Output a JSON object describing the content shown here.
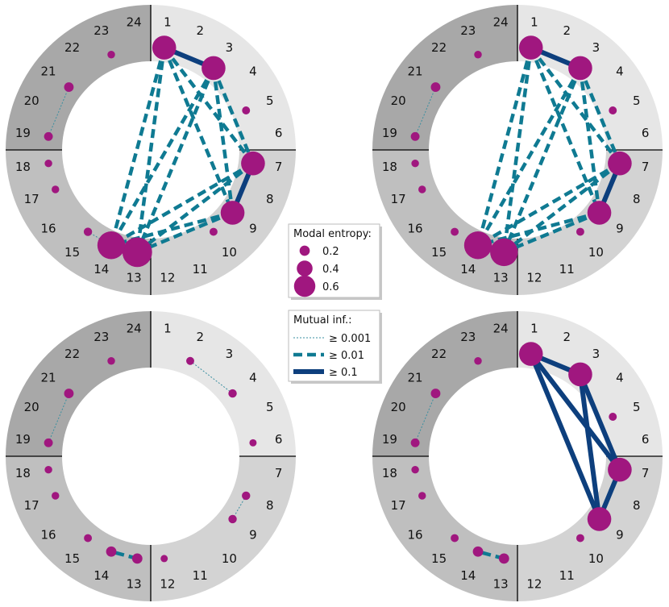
{
  "colors": {
    "ring_q1": "#e6e6e6",
    "ring_q2": "#d3d3d3",
    "ring_q3": "#bfbfbf",
    "ring_q4": "#a8a8a8",
    "node": "#a0177f",
    "edge_weak": "#3a8fa0",
    "edge_mid": "#0f7a92",
    "edge_strong": "#0d3f7d",
    "axis": "#000000"
  },
  "positions": [
    "1",
    "2",
    "3",
    "4",
    "5",
    "6",
    "7",
    "8",
    "9",
    "10",
    "11",
    "12",
    "13",
    "14",
    "15",
    "16",
    "17",
    "18",
    "19",
    "20",
    "21",
    "22",
    "23",
    "24"
  ],
  "legend_entropy": {
    "title": "Modal entropy:",
    "items": [
      {
        "label": "0.2",
        "value": 0.2
      },
      {
        "label": "0.4",
        "value": 0.4
      },
      {
        "label": "0.6",
        "value": 0.6
      }
    ]
  },
  "legend_mi": {
    "title": "Mutual inf.:",
    "items": [
      {
        "label": "≥ 0.001",
        "style": "weak"
      },
      {
        "label": "≥ 0.01",
        "style": "mid"
      },
      {
        "label": "≥ 0.1",
        "style": "strong"
      }
    ]
  },
  "panels": [
    {
      "id": "top-left",
      "nodes": [
        {
          "pos": 1,
          "entropy": 0.45
        },
        {
          "pos": 3,
          "entropy": 0.45
        },
        {
          "pos": 7,
          "entropy": 0.45
        },
        {
          "pos": 9,
          "entropy": 0.45
        },
        {
          "pos": 13,
          "entropy": 0.6
        },
        {
          "pos": 14,
          "entropy": 0.55
        },
        {
          "pos": 5,
          "entropy": 0.04
        },
        {
          "pos": 10,
          "entropy": 0.04
        },
        {
          "pos": 15,
          "entropy": 0.05
        },
        {
          "pos": 17,
          "entropy": 0.03
        },
        {
          "pos": 18,
          "entropy": 0.03
        },
        {
          "pos": 19,
          "entropy": 0.06
        },
        {
          "pos": 21,
          "entropy": 0.08
        },
        {
          "pos": 23,
          "entropy": 0.03
        }
      ],
      "edges": [
        {
          "a": 1,
          "b": 3,
          "mi": "strong"
        },
        {
          "a": 7,
          "b": 9,
          "mi": "strong"
        },
        {
          "a": 13,
          "b": 14,
          "mi": "strong"
        },
        {
          "a": 1,
          "b": 7,
          "mi": "mid"
        },
        {
          "a": 1,
          "b": 9,
          "mi": "mid"
        },
        {
          "a": 1,
          "b": 13,
          "mi": "mid"
        },
        {
          "a": 1,
          "b": 14,
          "mi": "mid"
        },
        {
          "a": 3,
          "b": 7,
          "mi": "mid"
        },
        {
          "a": 3,
          "b": 9,
          "mi": "mid"
        },
        {
          "a": 3,
          "b": 13,
          "mi": "mid"
        },
        {
          "a": 3,
          "b": 14,
          "mi": "mid"
        },
        {
          "a": 7,
          "b": 13,
          "mi": "mid"
        },
        {
          "a": 7,
          "b": 14,
          "mi": "mid"
        },
        {
          "a": 9,
          "b": 13,
          "mi": "mid"
        },
        {
          "a": 9,
          "b": 14,
          "mi": "mid"
        },
        {
          "a": 19,
          "b": 21,
          "mi": "weak"
        },
        {
          "a": 14,
          "b": 15,
          "mi": "weak"
        }
      ]
    },
    {
      "id": "top-right",
      "nodes": [
        {
          "pos": 1,
          "entropy": 0.45
        },
        {
          "pos": 3,
          "entropy": 0.45
        },
        {
          "pos": 7,
          "entropy": 0.45
        },
        {
          "pos": 9,
          "entropy": 0.45
        },
        {
          "pos": 13,
          "entropy": 0.55
        },
        {
          "pos": 14,
          "entropy": 0.55
        },
        {
          "pos": 5,
          "entropy": 0.04
        },
        {
          "pos": 10,
          "entropy": 0.04
        },
        {
          "pos": 15,
          "entropy": 0.04
        },
        {
          "pos": 17,
          "entropy": 0.03
        },
        {
          "pos": 18,
          "entropy": 0.03
        },
        {
          "pos": 19,
          "entropy": 0.06
        },
        {
          "pos": 21,
          "entropy": 0.08
        },
        {
          "pos": 23,
          "entropy": 0.03
        }
      ],
      "edges": [
        {
          "a": 1,
          "b": 3,
          "mi": "strong"
        },
        {
          "a": 7,
          "b": 9,
          "mi": "strong"
        },
        {
          "a": 13,
          "b": 14,
          "mi": "strong"
        },
        {
          "a": 1,
          "b": 7,
          "mi": "mid"
        },
        {
          "a": 1,
          "b": 9,
          "mi": "mid"
        },
        {
          "a": 1,
          "b": 13,
          "mi": "mid"
        },
        {
          "a": 1,
          "b": 14,
          "mi": "mid"
        },
        {
          "a": 3,
          "b": 7,
          "mi": "mid"
        },
        {
          "a": 3,
          "b": 9,
          "mi": "mid"
        },
        {
          "a": 3,
          "b": 13,
          "mi": "mid"
        },
        {
          "a": 3,
          "b": 14,
          "mi": "mid"
        },
        {
          "a": 7,
          "b": 13,
          "mi": "mid"
        },
        {
          "a": 7,
          "b": 14,
          "mi": "mid"
        },
        {
          "a": 9,
          "b": 13,
          "mi": "mid"
        },
        {
          "a": 9,
          "b": 14,
          "mi": "mid"
        },
        {
          "a": 19,
          "b": 21,
          "mi": "weak"
        }
      ]
    },
    {
      "id": "bottom-left",
      "nodes": [
        {
          "pos": 2,
          "entropy": 0.04
        },
        {
          "pos": 4,
          "entropy": 0.05
        },
        {
          "pos": 6,
          "entropy": 0.02
        },
        {
          "pos": 8,
          "entropy": 0.05
        },
        {
          "pos": 9,
          "entropy": 0.05
        },
        {
          "pos": 12,
          "entropy": 0.02
        },
        {
          "pos": 13,
          "entropy": 0.1
        },
        {
          "pos": 14,
          "entropy": 0.1
        },
        {
          "pos": 15,
          "entropy": 0.04
        },
        {
          "pos": 17,
          "entropy": 0.03
        },
        {
          "pos": 18,
          "entropy": 0.03
        },
        {
          "pos": 19,
          "entropy": 0.06
        },
        {
          "pos": 21,
          "entropy": 0.08
        },
        {
          "pos": 23,
          "entropy": 0.03
        }
      ],
      "edges": [
        {
          "a": 2,
          "b": 4,
          "mi": "weak"
        },
        {
          "a": 8,
          "b": 9,
          "mi": "weak"
        },
        {
          "a": 19,
          "b": 21,
          "mi": "weak"
        },
        {
          "a": 13,
          "b": 14,
          "mi": "mid"
        }
      ]
    },
    {
      "id": "bottom-right",
      "nodes": [
        {
          "pos": 1,
          "entropy": 0.45
        },
        {
          "pos": 3,
          "entropy": 0.45
        },
        {
          "pos": 7,
          "entropy": 0.45
        },
        {
          "pos": 9,
          "entropy": 0.45
        },
        {
          "pos": 5,
          "entropy": 0.04
        },
        {
          "pos": 10,
          "entropy": 0.04
        },
        {
          "pos": 13,
          "entropy": 0.1
        },
        {
          "pos": 14,
          "entropy": 0.1
        },
        {
          "pos": 15,
          "entropy": 0.04
        },
        {
          "pos": 17,
          "entropy": 0.03
        },
        {
          "pos": 18,
          "entropy": 0.03
        },
        {
          "pos": 19,
          "entropy": 0.06
        },
        {
          "pos": 21,
          "entropy": 0.08
        },
        {
          "pos": 23,
          "entropy": 0.03
        }
      ],
      "edges": [
        {
          "a": 1,
          "b": 3,
          "mi": "strong"
        },
        {
          "a": 1,
          "b": 7,
          "mi": "strong"
        },
        {
          "a": 1,
          "b": 9,
          "mi": "strong"
        },
        {
          "a": 3,
          "b": 7,
          "mi": "strong"
        },
        {
          "a": 3,
          "b": 9,
          "mi": "strong"
        },
        {
          "a": 7,
          "b": 9,
          "mi": "strong"
        },
        {
          "a": 13,
          "b": 14,
          "mi": "mid"
        },
        {
          "a": 19,
          "b": 21,
          "mi": "weak"
        }
      ]
    }
  ]
}
